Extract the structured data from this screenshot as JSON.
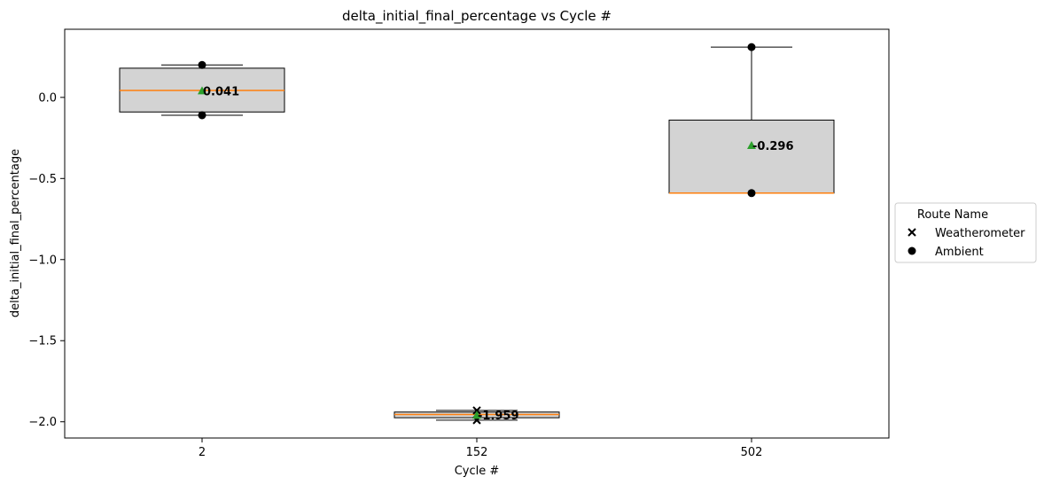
{
  "chart_data": {
    "type": "box",
    "title": "delta_initial_final_percentage vs Cycle #",
    "xlabel": "Cycle #",
    "ylabel": "delta_initial_final_percentage",
    "categories": [
      "2",
      "152",
      "502"
    ],
    "ylim": [
      -2.1,
      0.42
    ],
    "yticks": [
      0.0,
      -0.5,
      -1.0,
      -1.5,
      -2.0
    ],
    "ytick_labels": [
      "0.0",
      "−0.5",
      "−1.0",
      "−1.5",
      "−2.0"
    ],
    "grid": false,
    "boxes": [
      {
        "category": "2",
        "whisker_low": -0.11,
        "q1": -0.09,
        "median": 0.043,
        "q3": 0.18,
        "whisker_high": 0.2,
        "mean": 0.041,
        "mean_label": "0.041"
      },
      {
        "category": "152",
        "whisker_low": -1.99,
        "q1": -1.975,
        "median": -1.955,
        "q3": -1.94,
        "whisker_high": -1.93,
        "mean": -1.959,
        "mean_label": "-1.959"
      },
      {
        "category": "502",
        "whisker_low": -0.59,
        "q1": -0.59,
        "median": -0.59,
        "q3": -0.14,
        "whisker_high": 0.31,
        "mean": -0.296,
        "mean_label": "-0.296"
      }
    ],
    "series": [
      {
        "name": "Weatherometer",
        "marker": "x",
        "points": [
          {
            "x": "152",
            "y": -1.93
          },
          {
            "x": "152",
            "y": -1.99
          }
        ]
      },
      {
        "name": "Ambient",
        "marker": "o",
        "points": [
          {
            "x": "2",
            "y": 0.2
          },
          {
            "x": "2",
            "y": -0.11
          },
          {
            "x": "502",
            "y": 0.31
          },
          {
            "x": "502",
            "y": -0.59
          }
        ]
      }
    ],
    "legend": {
      "title": "Route Name",
      "placement": "right"
    },
    "colors": {
      "box_fill": "#d3d3d3",
      "median": "#ff7f0e",
      "mean": "#2ca02c",
      "marker": "#000000"
    }
  }
}
